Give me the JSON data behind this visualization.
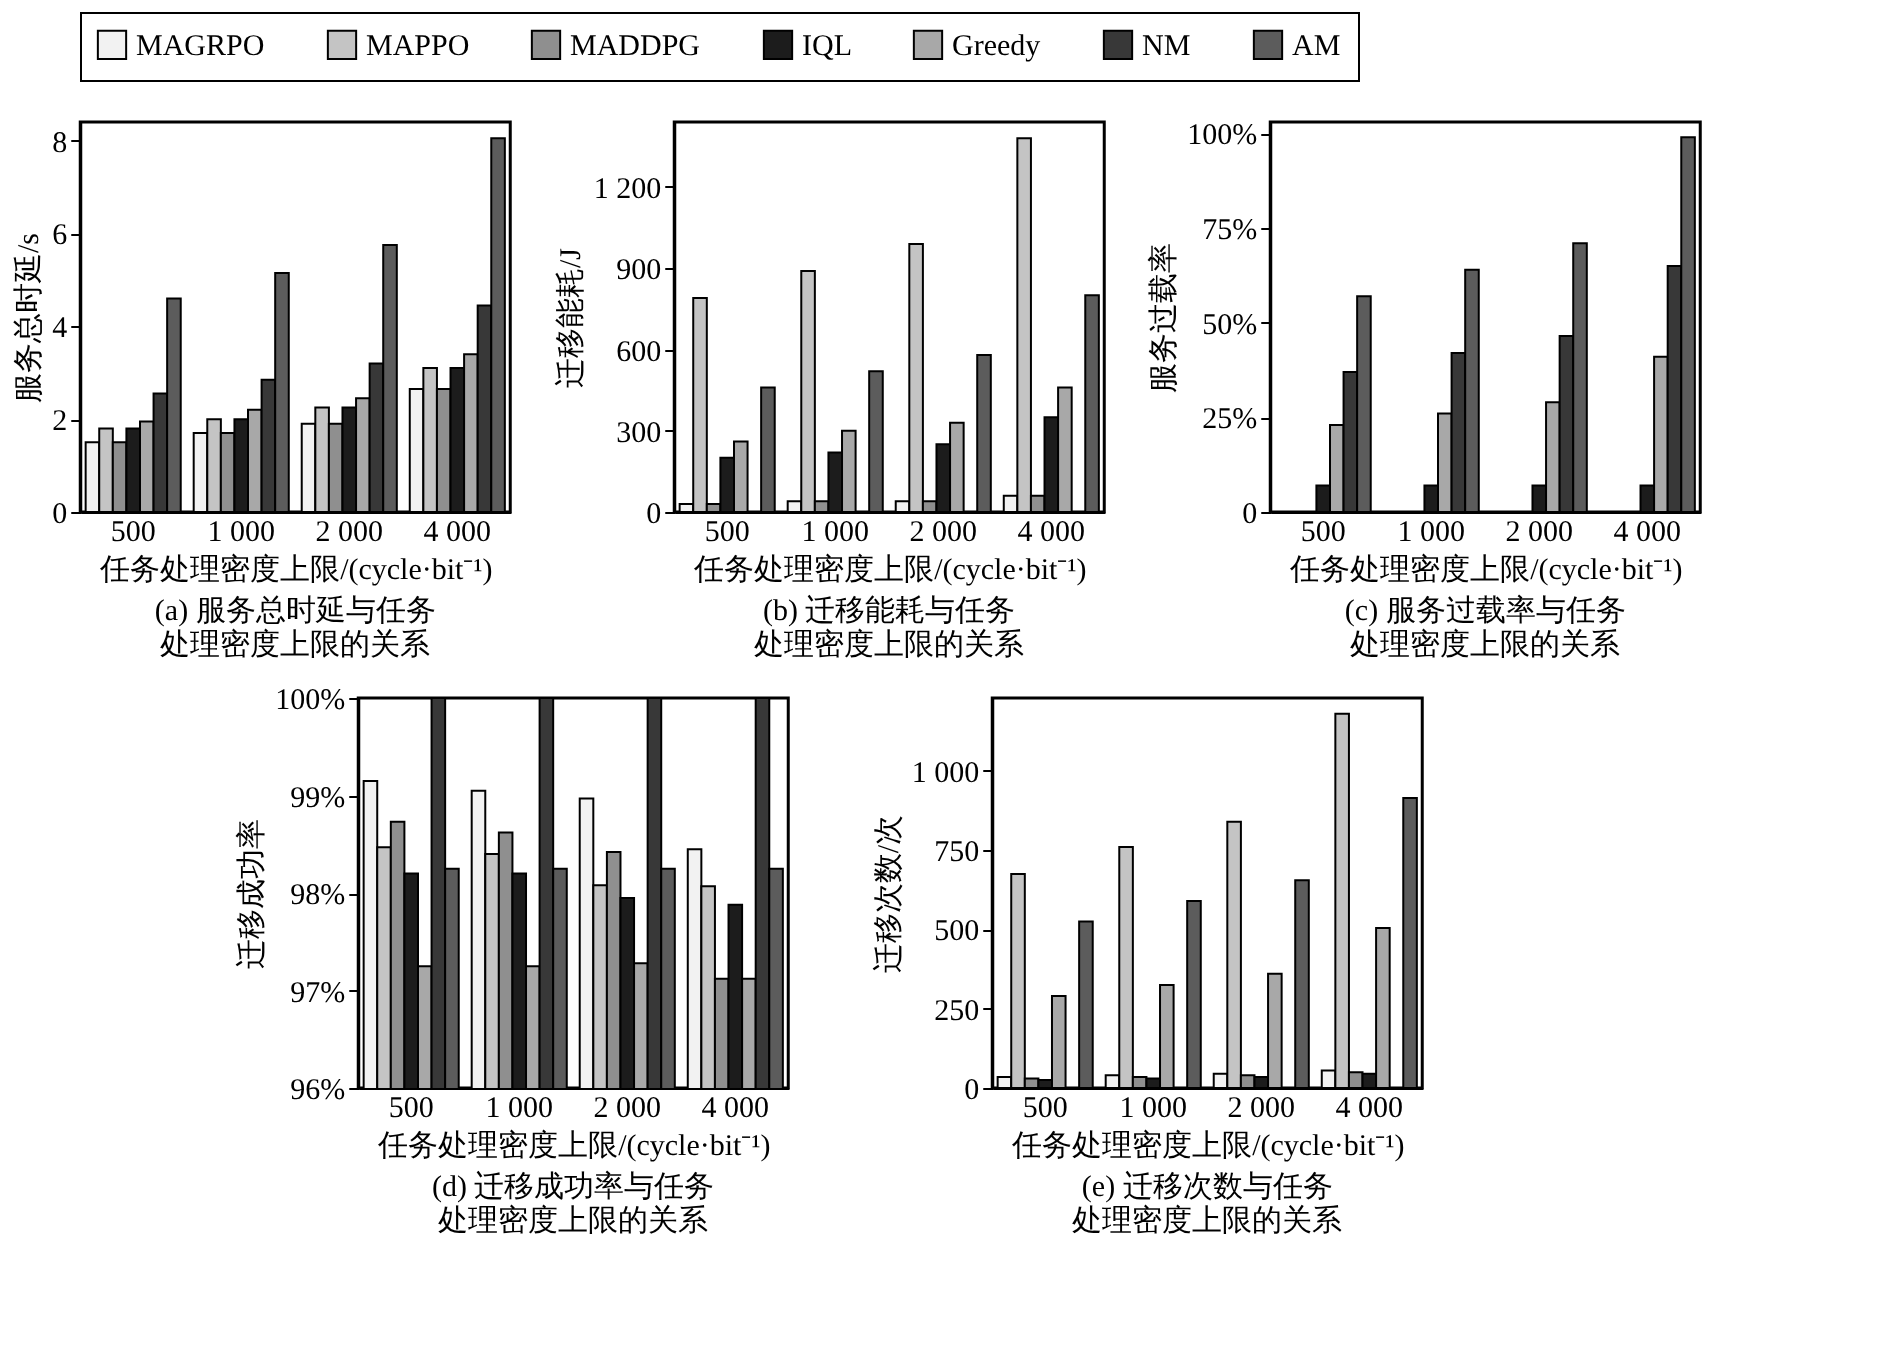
{
  "chart_data": [
    {
      "type": "bar",
      "title": [
        "(a) 服务总时延与任务",
        "处理密度上限的关系"
      ],
      "xlabel": "任务处理密度上限/(cycle·bit⁻¹)",
      "ylabel": "服务总时延/s",
      "categories": [
        "500",
        "1 000",
        "2 000",
        "4 000"
      ],
      "ylim": [
        0,
        8.4
      ],
      "yticks": [
        0,
        2,
        4,
        6,
        8
      ],
      "grid": false,
      "legend": "top",
      "series": [
        {
          "name": "MAGRPO",
          "color": "#f2f2f2",
          "values": [
            1.5,
            1.7,
            1.9,
            2.65
          ]
        },
        {
          "name": "MAPPO",
          "color": "#c4c4c4",
          "values": [
            1.8,
            2.0,
            2.25,
            3.1
          ]
        },
        {
          "name": "MADDPG",
          "color": "#8f8f8f",
          "values": [
            1.5,
            1.7,
            1.9,
            2.65
          ]
        },
        {
          "name": "IQL",
          "color": "#1c1c1c",
          "values": [
            1.8,
            2.0,
            2.25,
            3.1
          ]
        },
        {
          "name": "Greedy",
          "color": "#a8a8a8",
          "values": [
            1.95,
            2.2,
            2.45,
            3.4
          ]
        },
        {
          "name": "NM",
          "color": "#383838",
          "values": [
            2.55,
            2.85,
            3.2,
            4.45
          ]
        },
        {
          "name": "AM",
          "color": "#5c5c5c",
          "values": [
            4.6,
            5.15,
            5.75,
            8.05
          ]
        }
      ]
    },
    {
      "type": "bar",
      "title": [
        "(b) 迁移能耗与任务",
        "处理密度上限的关系"
      ],
      "xlabel": "任务处理密度上限/(cycle·bit⁻¹)",
      "ylabel": "迁移能耗/J",
      "categories": [
        "500",
        "1 000",
        "2 000",
        "4 000"
      ],
      "ylim": [
        0,
        1440
      ],
      "yticks": [
        0,
        300,
        600,
        900,
        {
          "value": 1200,
          "label": "1 200"
        }
      ],
      "grid": false,
      "legend": "top",
      "series": [
        {
          "name": "MAGRPO",
          "color": "#f2f2f2",
          "values": [
            30,
            40,
            40,
            60
          ]
        },
        {
          "name": "MAPPO",
          "color": "#c4c4c4",
          "values": [
            790,
            890,
            990,
            1380
          ]
        },
        {
          "name": "MADDPG",
          "color": "#8f8f8f",
          "values": [
            30,
            40,
            40,
            60
          ]
        },
        {
          "name": "IQL",
          "color": "#1c1c1c",
          "values": [
            200,
            220,
            250,
            350
          ]
        },
        {
          "name": "Greedy",
          "color": "#a8a8a8",
          "values": [
            260,
            300,
            330,
            460
          ]
        },
        {
          "name": "NM",
          "color": "#383838",
          "values": [
            null,
            null,
            null,
            null
          ]
        },
        {
          "name": "AM",
          "color": "#5c5c5c",
          "values": [
            460,
            520,
            580,
            800
          ]
        }
      ]
    },
    {
      "type": "bar",
      "title": [
        "(c) 服务过载率与任务",
        "处理密度上限的关系"
      ],
      "xlabel": "任务处理密度上限/(cycle·bit⁻¹)",
      "ylabel": "服务过载率",
      "categories": [
        "500",
        "1 000",
        "2 000",
        "4 000"
      ],
      "ylim": [
        0,
        103
      ],
      "yticks": [
        0,
        {
          "value": 25,
          "label": "25%"
        },
        {
          "value": 50,
          "label": "50%"
        },
        {
          "value": 75,
          "label": "75%"
        },
        {
          "value": 100,
          "label": "100%"
        }
      ],
      "grid": false,
      "legend": "top",
      "series": [
        {
          "name": "MAGRPO",
          "color": "#f2f2f2",
          "values": [
            null,
            null,
            null,
            null
          ]
        },
        {
          "name": "MAPPO",
          "color": "#c4c4c4",
          "values": [
            null,
            null,
            null,
            null
          ]
        },
        {
          "name": "MADDPG",
          "color": "#8f8f8f",
          "values": [
            null,
            null,
            null,
            null
          ]
        },
        {
          "name": "IQL",
          "color": "#1c1c1c",
          "values": [
            7,
            7,
            7,
            7
          ]
        },
        {
          "name": "Greedy",
          "color": "#a8a8a8",
          "values": [
            23,
            26,
            29,
            41
          ]
        },
        {
          "name": "NM",
          "color": "#383838",
          "values": [
            37,
            42,
            46.5,
            65
          ]
        },
        {
          "name": "AM",
          "color": "#5c5c5c",
          "values": [
            57,
            64,
            71,
            99
          ]
        }
      ]
    },
    {
      "type": "bar",
      "title": [
        "(d) 迁移成功率与任务",
        "处理密度上限的关系"
      ],
      "xlabel": "任务处理密度上限/(cycle·bit⁻¹)",
      "ylabel": "迁移成功率",
      "categories": [
        "500",
        "1 000",
        "2 000",
        "4 000"
      ],
      "ylim": [
        96,
        100
      ],
      "yticks": [
        {
          "value": 96,
          "label": "96%"
        },
        {
          "value": 97,
          "label": "97%"
        },
        {
          "value": 98,
          "label": "98%"
        },
        {
          "value": 99,
          "label": "99%"
        },
        {
          "value": 100,
          "label": "100%"
        }
      ],
      "grid": false,
      "legend": "top",
      "series": [
        {
          "name": "MAGRPO",
          "color": "#f2f2f2",
          "values": [
            99.15,
            99.05,
            98.97,
            98.45
          ]
        },
        {
          "name": "MAPPO",
          "color": "#c4c4c4",
          "values": [
            98.47,
            98.4,
            98.08,
            98.07
          ]
        },
        {
          "name": "MADDPG",
          "color": "#8f8f8f",
          "values": [
            98.73,
            98.62,
            98.42,
            97.12
          ]
        },
        {
          "name": "IQL",
          "color": "#1c1c1c",
          "values": [
            98.2,
            98.2,
            97.95,
            97.88
          ]
        },
        {
          "name": "Greedy",
          "color": "#a8a8a8",
          "values": [
            97.25,
            97.25,
            97.28,
            97.12
          ]
        },
        {
          "name": "NM",
          "color": "#383838",
          "values": [
            100,
            100,
            100,
            100
          ]
        },
        {
          "name": "AM",
          "color": "#5c5c5c",
          "values": [
            98.25,
            98.25,
            98.25,
            98.25
          ]
        }
      ]
    },
    {
      "type": "bar",
      "title": [
        "(e) 迁移次数与任务",
        "处理密度上限的关系"
      ],
      "xlabel": "任务处理密度上限/(cycle·bit⁻¹)",
      "ylabel": "迁移次数/次",
      "categories": [
        "500",
        "1 000",
        "2 000",
        "4 000"
      ],
      "ylim": [
        0,
        1230
      ],
      "yticks": [
        0,
        250,
        500,
        750,
        {
          "value": 1000,
          "label": "1 000"
        }
      ],
      "grid": false,
      "legend": "top",
      "series": [
        {
          "name": "MAGRPO",
          "color": "#f2f2f2",
          "values": [
            35,
            40,
            45,
            55
          ]
        },
        {
          "name": "MAPPO",
          "color": "#c4c4c4",
          "values": [
            675,
            760,
            840,
            1180
          ]
        },
        {
          "name": "MADDPG",
          "color": "#8f8f8f",
          "values": [
            30,
            35,
            40,
            50
          ]
        },
        {
          "name": "IQL",
          "color": "#1c1c1c",
          "values": [
            25,
            30,
            35,
            45
          ]
        },
        {
          "name": "Greedy",
          "color": "#a8a8a8",
          "values": [
            290,
            325,
            360,
            505
          ]
        },
        {
          "name": "NM",
          "color": "#383838",
          "values": [
            null,
            null,
            null,
            null
          ]
        },
        {
          "name": "AM",
          "color": "#5c5c5c",
          "values": [
            525,
            590,
            655,
            915
          ]
        }
      ]
    }
  ]
}
